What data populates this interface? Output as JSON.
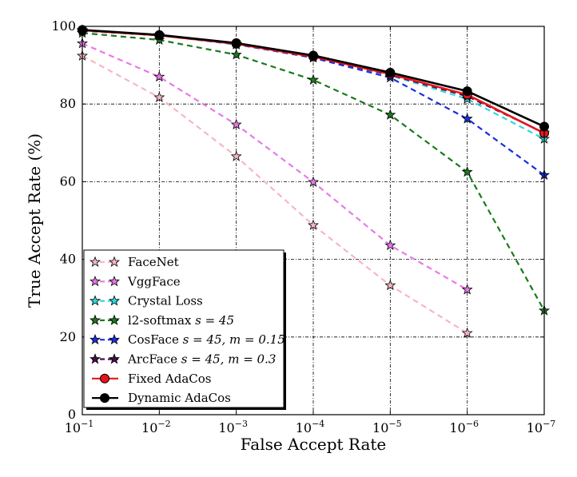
{
  "chart_data": {
    "type": "line",
    "title": "",
    "xlabel": "False Accept Rate",
    "ylabel": "True Accept Rate (%)",
    "ylim": [
      0,
      100
    ],
    "yticks": [
      0,
      20,
      40,
      60,
      80,
      100
    ],
    "categories": [
      "10^-1",
      "10^-2",
      "10^-3",
      "10^-4",
      "10^-5",
      "10^-6",
      "10^-7"
    ],
    "tick_base": "10",
    "tick_exponents": [
      "−1",
      "−2",
      "−3",
      "−4",
      "−5",
      "−6",
      "−7"
    ],
    "grid": true,
    "legend_position": "lower-left",
    "series": [
      {
        "name": "FaceNet",
        "label_main": "FaceNet",
        "label_extra": "",
        "color": "#f7b6c2",
        "style": "dashed",
        "marker": "star",
        "values": [
          92.4,
          81.7,
          66.5,
          48.8,
          33.3,
          21.0,
          null
        ]
      },
      {
        "name": "VggFace",
        "label_main": "VggFace",
        "label_extra": "",
        "color": "#e879e8",
        "style": "dashed",
        "marker": "star",
        "values": [
          95.6,
          87.0,
          74.7,
          59.9,
          43.6,
          32.2,
          null
        ]
      },
      {
        "name": "Crystal Loss",
        "label_main": "Crystal Loss",
        "label_extra": "",
        "color": "#2ed8e0",
        "style": "dashed",
        "marker": "star",
        "values": [
          99.0,
          97.7,
          95.3,
          92.1,
          87.4,
          81.3,
          71.0
        ]
      },
      {
        "name": "l2-softmax s = 45",
        "label_main": "l2-softmax",
        "label_extra": "s = 45",
        "color": "#1a7a1a",
        "style": "dashed",
        "marker": "star",
        "values": [
          98.3,
          96.5,
          92.7,
          86.2,
          77.2,
          62.5,
          26.8
        ]
      },
      {
        "name": "CosFace s = 45, m = 0.15",
        "label_main": "CosFace",
        "label_extra": "s = 45, m = 0.15",
        "color": "#1a2ee0",
        "style": "dashed",
        "marker": "star",
        "values": [
          98.9,
          97.7,
          95.4,
          91.9,
          86.8,
          76.2,
          61.7
        ]
      },
      {
        "name": "ArcFace s = 45, m = 0.3",
        "label_main": "ArcFace",
        "label_extra": "s = 45, m = 0.3",
        "color": "#4a0a4a",
        "style": "dashed",
        "marker": "star",
        "values": [
          98.9,
          97.7,
          95.5,
          92.1,
          87.5,
          82.0,
          72.6
        ]
      },
      {
        "name": "Fixed AdaCos",
        "label_main": "Fixed AdaCos",
        "label_extra": "",
        "color": "#e8141a",
        "style": "solid",
        "marker": "circle",
        "values": [
          99.0,
          97.7,
          95.5,
          92.2,
          87.7,
          82.4,
          72.5
        ]
      },
      {
        "name": "Dynamic AdaCos",
        "label_main": "Dynamic AdaCos",
        "label_extra": "",
        "color": "#000000",
        "style": "solid",
        "marker": "circle",
        "values": [
          99.1,
          97.8,
          95.7,
          92.5,
          88.1,
          83.3,
          74.2
        ]
      }
    ]
  }
}
